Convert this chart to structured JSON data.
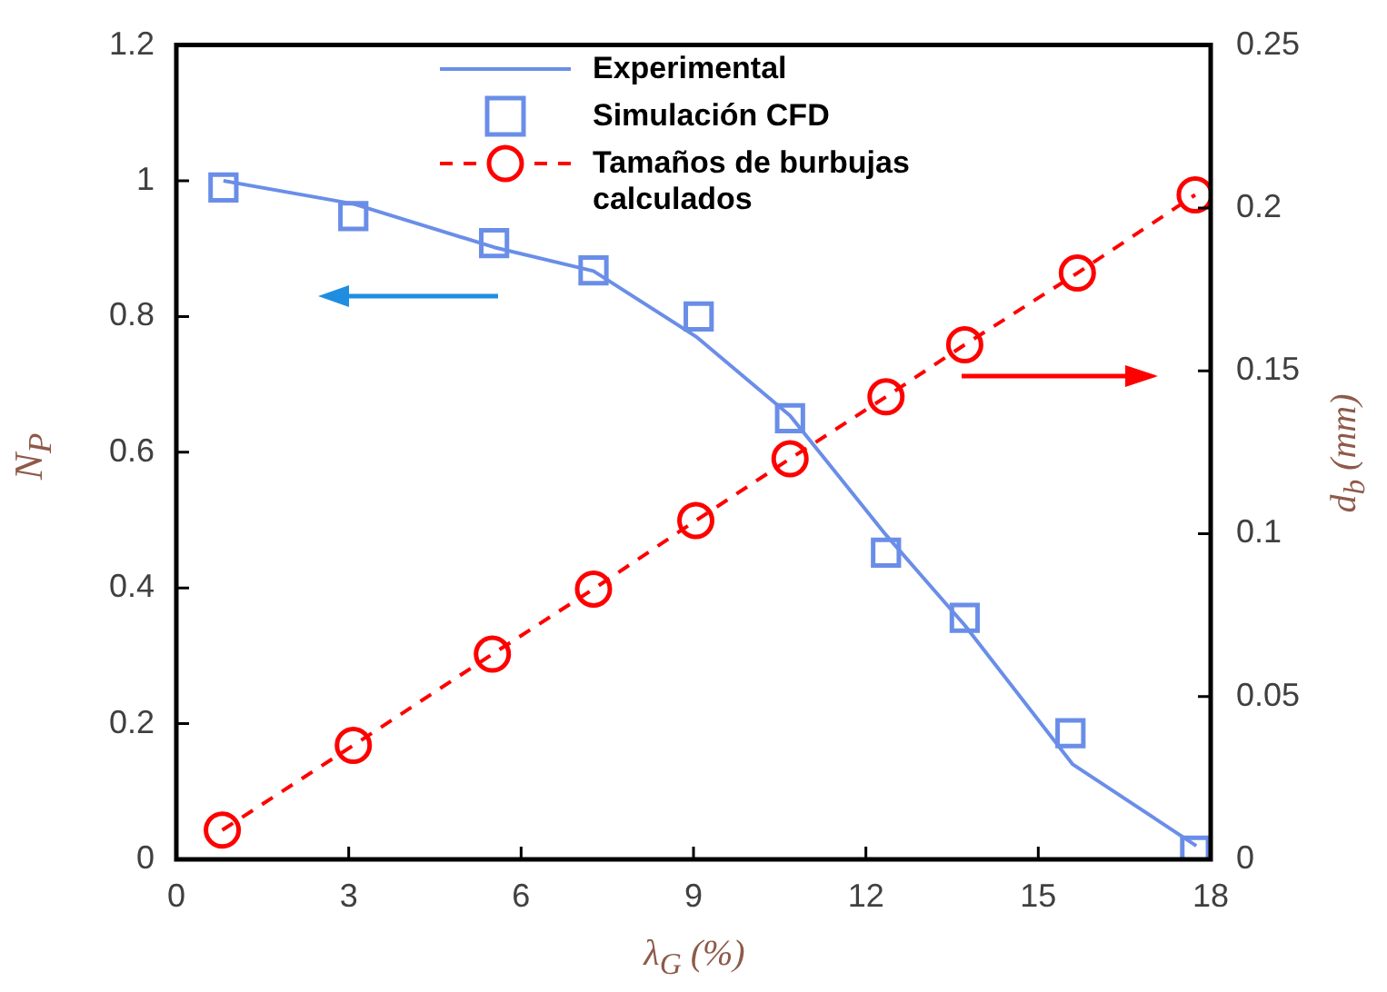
{
  "chart_data": {
    "type": "line",
    "xlabel": "λ$_{G}$ (%)",
    "ylabel": "N$_{P}$",
    "y2label": "d$_{b}$ (mm)",
    "xlim": [
      0,
      18
    ],
    "xticks": [
      0,
      3,
      6,
      9,
      12,
      15,
      18
    ],
    "ylim": [
      0,
      1.2
    ],
    "yticks": [
      0,
      0.2,
      0.4,
      0.6,
      0.8,
      1,
      1.2
    ],
    "y2lim": [
      0,
      0.25
    ],
    "y2ticks": [
      0,
      0.05,
      0.1,
      0.15,
      0.2,
      0.25
    ],
    "legend": "top",
    "grid": false,
    "series": [
      {
        "name": "Experimental",
        "type": "line",
        "marker": "none",
        "line_style": "solid",
        "color": "#6a8ee8",
        "x": [
          0.82,
          3.08,
          5.53,
          7.26,
          9.05,
          10.68,
          12.35,
          13.72,
          15.6,
          17.75
        ],
        "values": [
          1.0,
          0.966,
          0.902,
          0.867,
          0.77,
          0.654,
          0.478,
          0.345,
          0.14,
          0.02
        ]
      },
      {
        "name": "Simulación CFD",
        "type": "scatter",
        "marker": "square",
        "color": "#6a8ee8",
        "x": [
          0.82,
          3.08,
          5.53,
          7.26,
          9.09,
          10.68,
          12.35,
          13.72,
          15.56,
          17.73
        ],
        "values": [
          0.99,
          0.948,
          0.908,
          0.868,
          0.8,
          0.65,
          0.452,
          0.356,
          0.186,
          0.013
        ]
      },
      {
        "name": "Tamaños de burbujas calculados",
        "type": "line",
        "axis": "y2",
        "marker": "circle",
        "line_style": "dashed",
        "color": "#ff0000",
        "x": [
          0.8,
          3.08,
          5.5,
          7.26,
          9.04,
          10.68,
          12.35,
          13.72,
          15.68,
          17.73
        ],
        "values": [
          0.009,
          0.035,
          0.063,
          0.083,
          0.104,
          0.123,
          0.142,
          0.158,
          0.18,
          0.204
        ]
      }
    ]
  }
}
